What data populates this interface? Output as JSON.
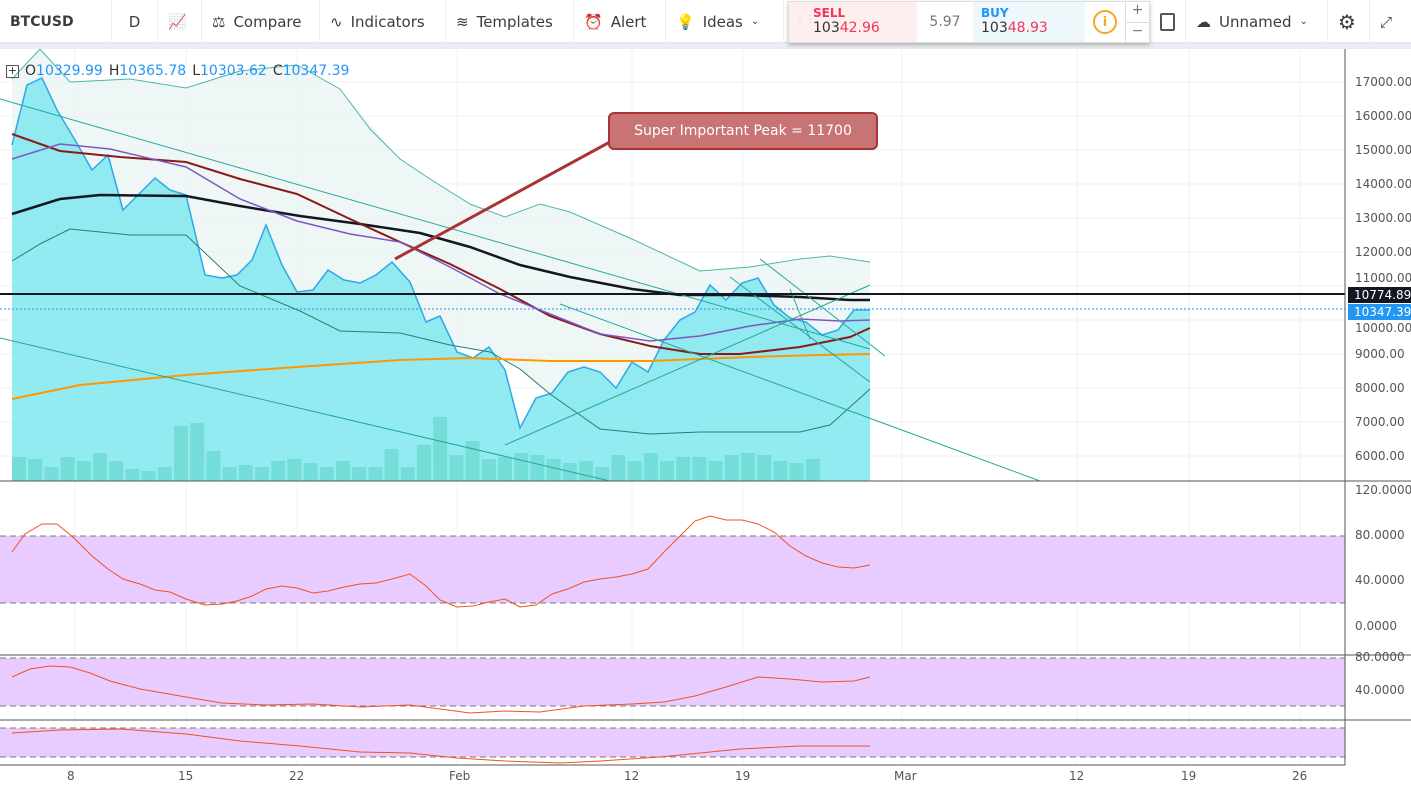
{
  "toolbar": {
    "symbol": "BTCUSD",
    "interval": "D",
    "compare": "Compare",
    "indicators": "Indicators",
    "templates": "Templates",
    "alert": "Alert",
    "ideas": "Ideas",
    "layout_name": "Unnamed"
  },
  "trade": {
    "sell_label": "SELL",
    "sell_price_a": "103",
    "sell_price_b": "42.96",
    "spread": "5.97",
    "buy_label": "BUY",
    "buy_price_a": "103",
    "buy_price_b": "48.93",
    "plus": "+",
    "minus": "−"
  },
  "legend": {
    "o_label": "O",
    "o": "10329.99",
    "h_label": "H",
    "h": "10365.78",
    "l_label": "L",
    "l": "10303.62",
    "c_label": "C",
    "c": "10347.39"
  },
  "annotation": "Super Important Peak = 11700",
  "price_axis": [
    "17000.00",
    "16000.00",
    "15000.00",
    "14000.00",
    "13000.00",
    "12000.00",
    "11000.00",
    "10000.00",
    "9000.00",
    "8000.00",
    "7000.00",
    "6000.00"
  ],
  "price_labels": {
    "line": "10774.89",
    "last": "10347.39",
    "line_color": "#131722",
    "last_color": "#2196f3"
  },
  "osc1_axis": [
    "120.0000",
    "80.0000",
    "40.0000",
    "0.0000"
  ],
  "osc2_axis": [
    "80.0000",
    "40.0000"
  ],
  "time_axis": [
    "8",
    "15",
    "22",
    "Feb",
    "12",
    "19",
    "Mar",
    "12",
    "19",
    "26"
  ],
  "colors": {
    "price": "#2fa7e8",
    "band": "#e1bee7",
    "osc": "#f4511e",
    "ma_dark": "#8b1a1a",
    "ma_black": "#131722",
    "ma_orange": "#ff9800"
  }
}
